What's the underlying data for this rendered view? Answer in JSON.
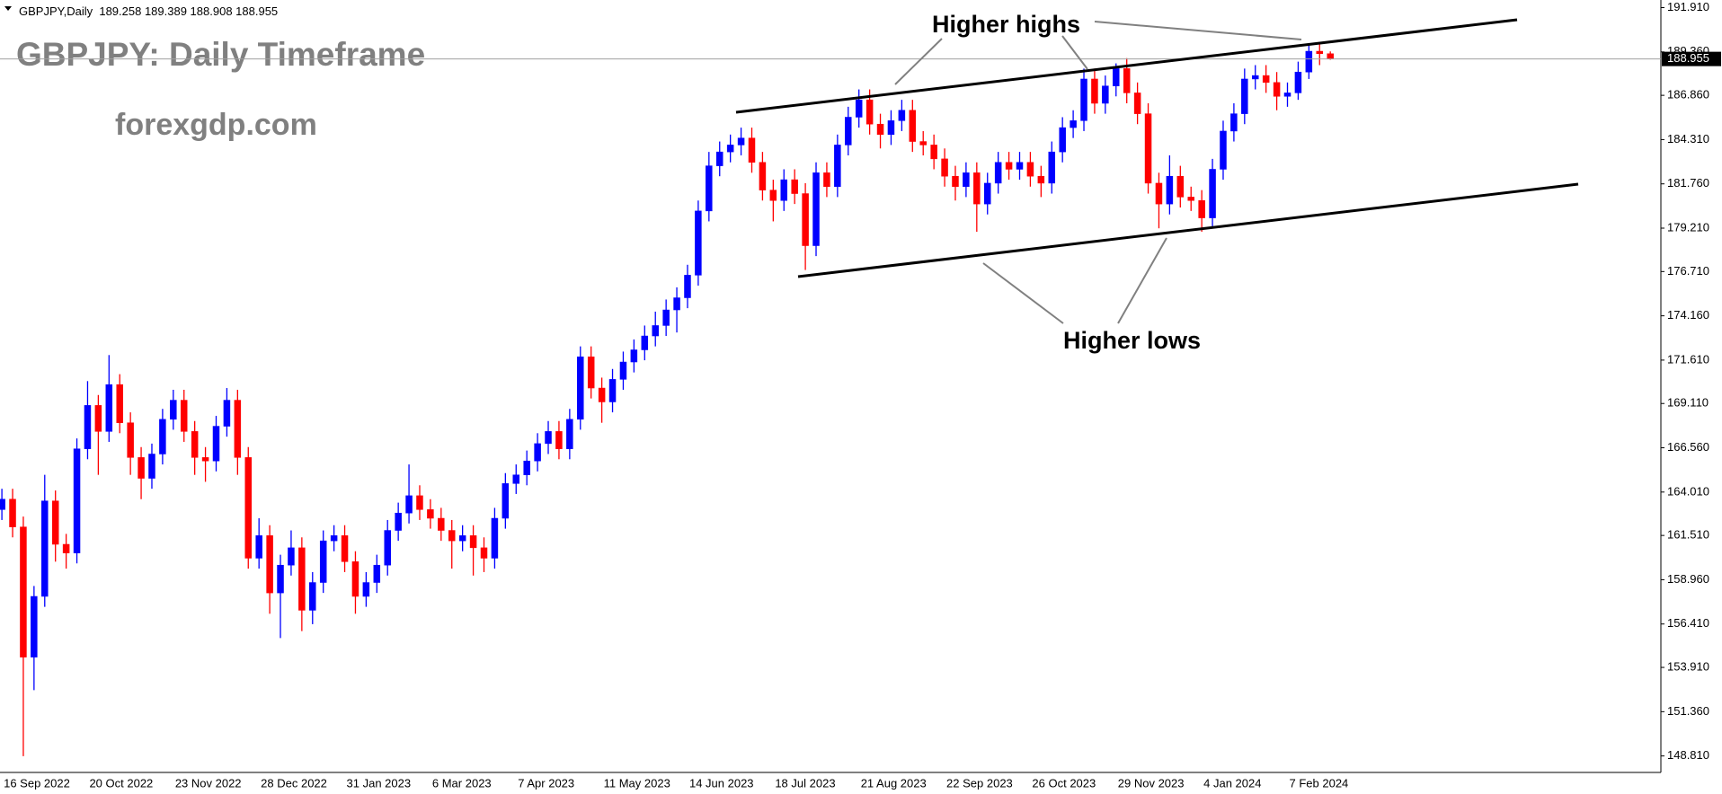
{
  "chart_data": {
    "type": "candlestick",
    "header": "GBPJPY,Daily  189.258 189.389 188.908 188.955",
    "title": "GBPJPY: Daily Timeframe",
    "subtitle": "forexgdp.com",
    "annotations": [
      "Higher highs",
      "Higher lows"
    ],
    "categories": [
      "16 Sep 2022",
      null,
      null,
      null,
      null,
      null,
      null,
      null,
      "20 Oct 2022",
      null,
      null,
      null,
      null,
      null,
      null,
      null,
      "23 Nov 2022",
      null,
      null,
      null,
      null,
      null,
      null,
      null,
      "28 Dec 2022",
      null,
      null,
      null,
      null,
      null,
      null,
      null,
      "31 Jan 2023",
      null,
      null,
      null,
      null,
      null,
      null,
      null,
      "6 Mar 2023",
      null,
      null,
      null,
      null,
      null,
      null,
      null,
      "7 Apr 2023",
      null,
      null,
      null,
      null,
      null,
      null,
      null,
      "11 May 2023",
      null,
      null,
      null,
      null,
      null,
      null,
      null,
      "14 Jun 2023",
      null,
      null,
      null,
      null,
      null,
      null,
      null,
      "18 Jul 2023",
      null,
      null,
      null,
      null,
      null,
      null,
      null,
      "21 Aug 2023",
      null,
      null,
      null,
      null,
      null,
      null,
      null,
      "22 Sep 2023",
      null,
      null,
      null,
      null,
      null,
      null,
      null,
      "26 Oct 2023",
      null,
      null,
      null,
      null,
      null,
      null,
      null,
      "29 Nov 2023",
      null,
      null,
      null,
      null,
      null,
      null,
      null,
      "4 Jan 2024",
      null,
      null,
      null,
      null,
      null,
      null,
      null,
      "7 Feb 2024",
      null,
      null,
      null,
      null
    ],
    "open": [
      163.0,
      163.6,
      162.0,
      154.5,
      158.0,
      163.5,
      161.0,
      160.5,
      166.5,
      169.0,
      167.5,
      170.2,
      168.0,
      166.0,
      164.8,
      166.2,
      168.2,
      169.3,
      167.5,
      166.0,
      165.8,
      167.8,
      169.3,
      166.0,
      160.2,
      161.5,
      158.2,
      159.8,
      160.8,
      157.2,
      158.8,
      161.2,
      161.5,
      160.0,
      158.0,
      158.8,
      159.8,
      161.8,
      162.8,
      163.8,
      163.0,
      162.5,
      161.8,
      161.2,
      161.5,
      160.8,
      160.2,
      162.5,
      164.5,
      165.0,
      165.8,
      166.8,
      167.5,
      166.5,
      168.2,
      171.8,
      170.0,
      169.2,
      170.5,
      171.5,
      172.2,
      173.0,
      173.6,
      174.5,
      175.2,
      176.5,
      180.2,
      182.8,
      183.6,
      184.0,
      184.4,
      183.0,
      181.4,
      180.8,
      182.0,
      181.2,
      178.2,
      182.4,
      181.6,
      184.0,
      185.6,
      186.6,
      185.2,
      184.6,
      185.4,
      186.0,
      184.2,
      184.0,
      183.2,
      182.2,
      181.6,
      182.4,
      180.6,
      181.8,
      183.0,
      182.6,
      183.0,
      182.2,
      181.8,
      183.6,
      185.0,
      185.4,
      187.8,
      186.4,
      187.4,
      188.4,
      187.0,
      185.8,
      181.8,
      180.6,
      182.2,
      181.0,
      180.8,
      179.8,
      182.6,
      184.8,
      185.8,
      187.8,
      188.0,
      187.6,
      186.8,
      187.0,
      188.2,
      189.4,
      189.258
    ],
    "high": [
      164.2,
      164.2,
      162.6,
      158.6,
      165.0,
      164.1,
      161.6,
      167.1,
      170.4,
      169.6,
      171.9,
      170.8,
      168.6,
      166.6,
      166.8,
      168.8,
      169.9,
      169.9,
      168.1,
      166.6,
      168.4,
      170.0,
      169.9,
      166.6,
      162.5,
      162.1,
      160.4,
      161.8,
      161.4,
      159.4,
      161.8,
      162.1,
      162.1,
      160.6,
      159.4,
      160.4,
      162.4,
      163.4,
      165.6,
      164.4,
      163.6,
      163.1,
      162.4,
      162.1,
      162.1,
      161.4,
      163.1,
      165.1,
      165.6,
      166.4,
      167.4,
      168.1,
      168.1,
      168.8,
      172.4,
      172.4,
      170.6,
      171.1,
      172.1,
      172.8,
      173.6,
      174.4,
      175.1,
      175.8,
      177.1,
      180.8,
      183.6,
      184.2,
      184.6,
      185.0,
      185.0,
      183.6,
      182.0,
      182.6,
      182.6,
      181.8,
      183.0,
      183.0,
      184.6,
      186.2,
      187.2,
      187.2,
      185.8,
      186.0,
      186.6,
      186.6,
      184.8,
      184.6,
      183.8,
      182.8,
      183.0,
      183.0,
      182.4,
      183.6,
      183.6,
      183.6,
      183.6,
      182.8,
      184.2,
      185.6,
      186.0,
      188.4,
      188.4,
      188.0,
      188.7,
      189.0,
      187.6,
      186.4,
      182.4,
      183.4,
      182.8,
      181.6,
      181.4,
      183.2,
      185.4,
      186.4,
      188.4,
      188.6,
      188.6,
      188.2,
      187.6,
      188.8,
      189.8,
      189.9,
      189.389
    ],
    "low": [
      162.4,
      161.4,
      148.8,
      152.6,
      157.4,
      160.0,
      159.6,
      159.9,
      165.9,
      165.0,
      166.9,
      167.4,
      165.0,
      163.6,
      164.2,
      165.6,
      167.6,
      166.9,
      165.0,
      164.6,
      165.2,
      167.2,
      165.0,
      159.6,
      159.6,
      157.0,
      155.6,
      159.2,
      156.0,
      156.4,
      158.2,
      160.6,
      159.4,
      157.0,
      157.4,
      158.2,
      159.2,
      161.2,
      162.2,
      162.4,
      161.9,
      161.2,
      159.6,
      160.6,
      159.2,
      159.4,
      159.6,
      161.9,
      163.9,
      164.4,
      165.2,
      166.2,
      165.9,
      165.9,
      167.6,
      169.4,
      168.0,
      168.6,
      169.9,
      170.9,
      171.6,
      172.4,
      173.0,
      173.2,
      174.6,
      175.9,
      179.6,
      182.2,
      183.0,
      183.4,
      182.4,
      180.8,
      179.6,
      180.2,
      180.6,
      176.8,
      177.6,
      181.0,
      181.0,
      183.4,
      185.0,
      184.6,
      183.8,
      184.0,
      184.8,
      183.6,
      183.4,
      182.6,
      181.6,
      180.8,
      181.0,
      179.0,
      180.0,
      181.2,
      182.0,
      182.0,
      181.6,
      181.0,
      181.2,
      183.0,
      184.4,
      184.8,
      185.8,
      185.8,
      186.8,
      186.4,
      185.2,
      181.2,
      179.2,
      180.0,
      180.4,
      180.2,
      179.0,
      179.2,
      182.0,
      184.2,
      185.2,
      187.2,
      187.0,
      186.0,
      186.2,
      186.6,
      187.8,
      188.6,
      188.908
    ],
    "close": [
      163.6,
      162.0,
      154.5,
      158.0,
      163.5,
      161.0,
      160.5,
      166.5,
      169.0,
      167.5,
      170.2,
      168.0,
      166.0,
      164.8,
      166.2,
      168.2,
      169.3,
      167.5,
      166.0,
      165.8,
      167.8,
      169.3,
      166.0,
      160.2,
      161.5,
      158.2,
      159.8,
      160.8,
      157.2,
      158.8,
      161.2,
      161.5,
      160.0,
      158.0,
      158.8,
      159.8,
      161.8,
      162.8,
      163.8,
      163.0,
      162.5,
      161.8,
      161.2,
      161.5,
      160.8,
      160.2,
      162.5,
      164.5,
      165.0,
      165.8,
      166.8,
      167.5,
      166.5,
      168.2,
      171.8,
      170.0,
      169.2,
      170.5,
      171.5,
      172.2,
      173.0,
      173.6,
      174.5,
      175.2,
      176.5,
      180.2,
      182.8,
      183.6,
      184.0,
      184.4,
      183.0,
      181.4,
      180.8,
      182.0,
      181.2,
      178.2,
      182.4,
      181.6,
      184.0,
      185.6,
      186.6,
      185.2,
      184.6,
      185.4,
      186.0,
      184.2,
      184.0,
      183.2,
      182.2,
      181.6,
      182.4,
      180.6,
      181.8,
      183.0,
      182.6,
      183.0,
      182.2,
      181.8,
      183.6,
      185.0,
      185.4,
      187.8,
      186.4,
      187.4,
      188.4,
      187.0,
      185.8,
      181.8,
      180.6,
      182.2,
      181.0,
      180.8,
      179.8,
      182.6,
      184.8,
      185.8,
      187.8,
      188.0,
      187.6,
      186.8,
      187.0,
      188.2,
      189.4,
      189.258,
      188.955
    ],
    "up_color": "#0000ff",
    "down_color": "#ff0000",
    "ylim": [
      147.86,
      192.35
    ],
    "yticks": [
      {
        "value": 148.81,
        "label": "148.810"
      },
      {
        "value": 151.36,
        "label": "151.360"
      },
      {
        "value": 153.91,
        "label": "153.910"
      },
      {
        "value": 156.41,
        "label": "156.410"
      },
      {
        "value": 158.96,
        "label": "158.960"
      },
      {
        "value": 161.51,
        "label": "161.510"
      },
      {
        "value": 164.01,
        "label": "164.010"
      },
      {
        "value": 166.56,
        "label": "166.560"
      },
      {
        "value": 169.11,
        "label": "169.110"
      },
      {
        "value": 171.61,
        "label": "171.610"
      },
      {
        "value": 174.16,
        "label": "174.160"
      },
      {
        "value": 176.71,
        "label": "176.710"
      },
      {
        "value": 179.21,
        "label": "179.210"
      },
      {
        "value": 181.76,
        "label": "181.760"
      },
      {
        "value": 184.31,
        "label": "184.310"
      },
      {
        "value": 186.86,
        "label": "186.860"
      },
      {
        "value": 189.36,
        "label": "189.360"
      },
      {
        "value": 191.91,
        "label": "191.910"
      }
    ],
    "grid": false
  }
}
